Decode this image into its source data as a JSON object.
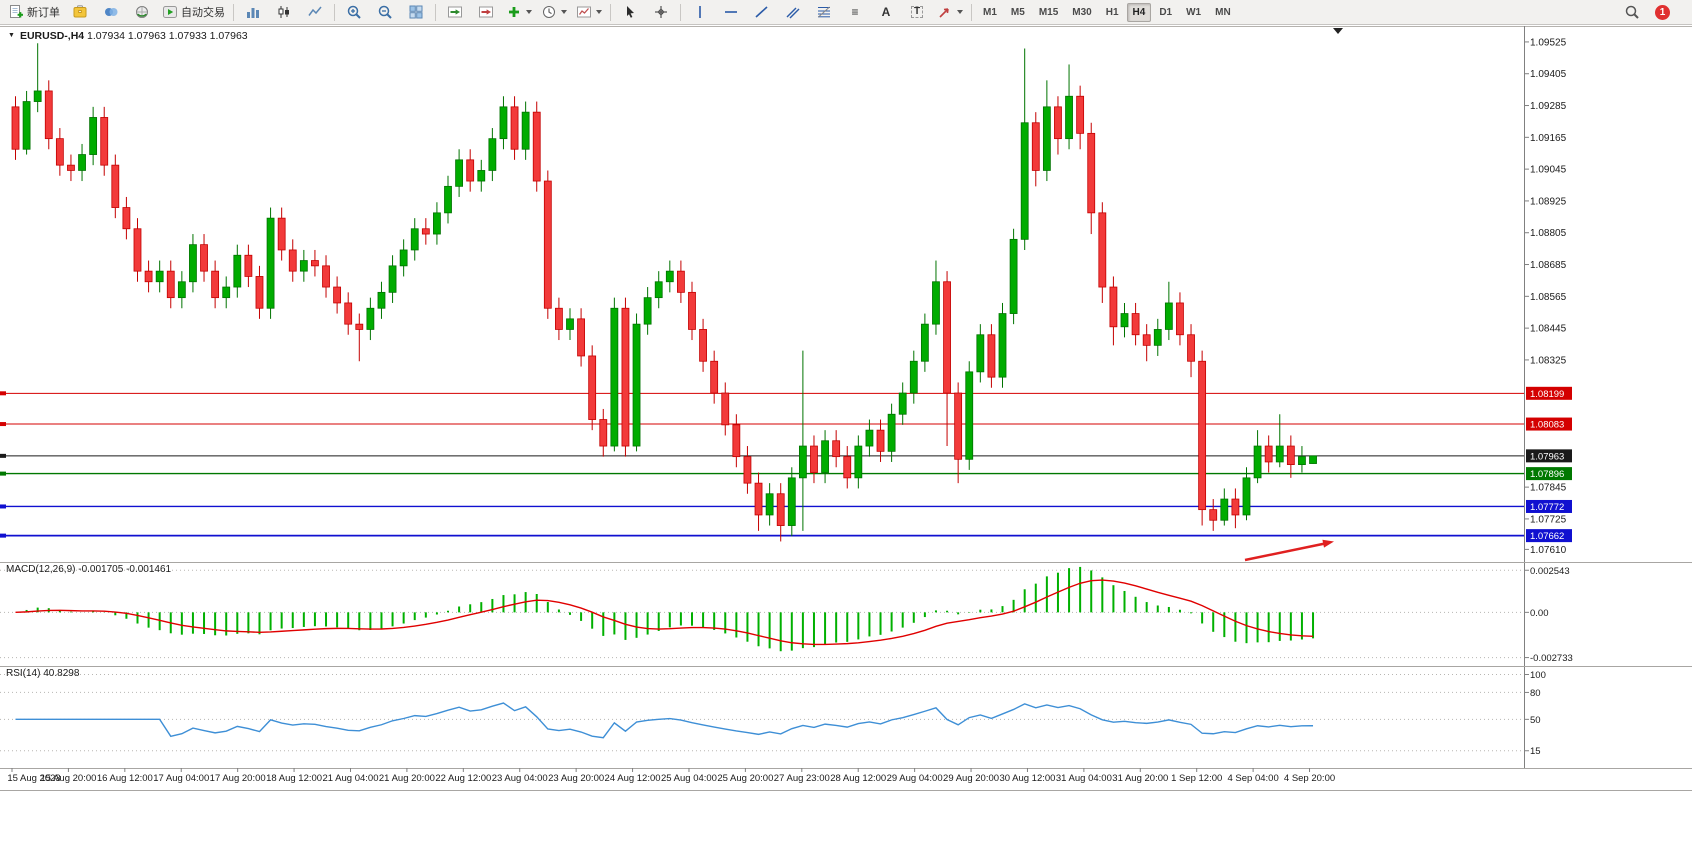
{
  "toolbar": {
    "new_order": "新订单",
    "autotrading": "自动交易",
    "timeframes": [
      "M1",
      "M5",
      "M15",
      "M30",
      "H1",
      "H4",
      "D1",
      "W1",
      "MN"
    ],
    "active_timeframe": "H4",
    "notification_count": "1"
  },
  "chart": {
    "symbol_label": "EURUSD-,H4",
    "ohlc_text": "1.07934 1.07963 1.07933 1.07963"
  },
  "chart_data": {
    "type": "candlestick",
    "symbol": "EURUSD-",
    "timeframe": "H4",
    "title": "EURUSD-,H4 1.07934 1.07963 1.07933 1.07963",
    "ylim": [
      1.0757,
      1.0957
    ],
    "y_ticks": [
      1.09525,
      1.09405,
      1.09285,
      1.09165,
      1.09045,
      1.08925,
      1.08805,
      1.08685,
      1.08565,
      1.08445,
      1.08325,
      1.07845,
      1.07725,
      1.0761
    ],
    "price_lines": [
      {
        "price": 1.08199,
        "label": "1.08199",
        "color": "#d40000",
        "width": 1
      },
      {
        "price": 1.08083,
        "label": "1.08083",
        "color": "#d40000",
        "width": 1
      },
      {
        "price": 1.07963,
        "label": "1.07963",
        "color": "#1a1a1a",
        "width": 1,
        "role": "current-bid"
      },
      {
        "price": 1.07896,
        "label": "1.07896",
        "color": "#007800",
        "width": 1.4
      },
      {
        "price": 1.07772,
        "label": "1.07772",
        "color": "#1010d0",
        "width": 1.4
      },
      {
        "price": 1.07662,
        "label": "1.07662",
        "color": "#1010d0",
        "width": 1.8
      }
    ],
    "x_labels": [
      "15 Aug 2023",
      "15 Aug 20:00",
      "16 Aug 12:00",
      "17 Aug 04:00",
      "17 Aug 20:00",
      "18 Aug 12:00",
      "21 Aug 04:00",
      "21 Aug 20:00",
      "22 Aug 12:00",
      "23 Aug 04:00",
      "23 Aug 20:00",
      "24 Aug 12:00",
      "25 Aug 04:00",
      "25 Aug 20:00",
      "27 Aug 23:00",
      "28 Aug 12:00",
      "29 Aug 04:00",
      "29 Aug 20:00",
      "30 Aug 12:00",
      "31 Aug 04:00",
      "31 Aug 20:00",
      "1 Sep 12:00",
      "4 Sep 04:00",
      "4 Sep 20:00"
    ],
    "candles": [
      [
        1.0928,
        1.0932,
        1.0908,
        1.0912
      ],
      [
        1.0912,
        1.0934,
        1.091,
        1.093
      ],
      [
        1.093,
        1.0952,
        1.0926,
        1.0934
      ],
      [
        1.0934,
        1.0938,
        1.0912,
        1.0916
      ],
      [
        1.0916,
        1.092,
        1.0902,
        1.0906
      ],
      [
        1.0906,
        1.091,
        1.09,
        1.0904
      ],
      [
        1.0904,
        1.0914,
        1.09,
        1.091
      ],
      [
        1.091,
        1.0928,
        1.0906,
        1.0924
      ],
      [
        1.0924,
        1.0928,
        1.0902,
        1.0906
      ],
      [
        1.0906,
        1.091,
        1.0886,
        1.089
      ],
      [
        1.089,
        1.0894,
        1.0878,
        1.0882
      ],
      [
        1.0882,
        1.0886,
        1.0862,
        1.0866
      ],
      [
        1.0866,
        1.087,
        1.0858,
        1.0862
      ],
      [
        1.0862,
        1.087,
        1.0858,
        1.0866
      ],
      [
        1.0866,
        1.087,
        1.0852,
        1.0856
      ],
      [
        1.0856,
        1.0866,
        1.0852,
        1.0862
      ],
      [
        1.0862,
        1.088,
        1.0858,
        1.0876
      ],
      [
        1.0876,
        1.088,
        1.0862,
        1.0866
      ],
      [
        1.0866,
        1.087,
        1.0852,
        1.0856
      ],
      [
        1.0856,
        1.0864,
        1.0852,
        1.086
      ],
      [
        1.086,
        1.0876,
        1.0856,
        1.0872
      ],
      [
        1.0872,
        1.0876,
        1.086,
        1.0864
      ],
      [
        1.0864,
        1.0868,
        1.0848,
        1.0852
      ],
      [
        1.0852,
        1.089,
        1.0848,
        1.0886
      ],
      [
        1.0886,
        1.089,
        1.087,
        1.0874
      ],
      [
        1.0874,
        1.0878,
        1.0862,
        1.0866
      ],
      [
        1.0866,
        1.0874,
        1.0862,
        1.087
      ],
      [
        1.087,
        1.0874,
        1.0864,
        1.0868
      ],
      [
        1.0868,
        1.0872,
        1.0856,
        1.086
      ],
      [
        1.086,
        1.0864,
        1.085,
        1.0854
      ],
      [
        1.0854,
        1.0858,
        1.0842,
        1.0846
      ],
      [
        1.0846,
        1.085,
        1.0832,
        1.0844
      ],
      [
        1.0844,
        1.0856,
        1.084,
        1.0852
      ],
      [
        1.0852,
        1.0862,
        1.0848,
        1.0858
      ],
      [
        1.0858,
        1.0872,
        1.0854,
        1.0868
      ],
      [
        1.0868,
        1.0878,
        1.0864,
        1.0874
      ],
      [
        1.0874,
        1.0886,
        1.087,
        1.0882
      ],
      [
        1.0882,
        1.0886,
        1.0876,
        1.088
      ],
      [
        1.088,
        1.0892,
        1.0876,
        1.0888
      ],
      [
        1.0888,
        1.0902,
        1.0884,
        1.0898
      ],
      [
        1.0898,
        1.0912,
        1.0894,
        1.0908
      ],
      [
        1.0908,
        1.0912,
        1.0896,
        1.09
      ],
      [
        1.09,
        1.0908,
        1.0896,
        1.0904
      ],
      [
        1.0904,
        1.092,
        1.09,
        1.0916
      ],
      [
        1.0916,
        1.0932,
        1.0912,
        1.0928
      ],
      [
        1.0928,
        1.0932,
        1.0908,
        1.0912
      ],
      [
        1.0912,
        1.093,
        1.0908,
        1.0926
      ],
      [
        1.0926,
        1.093,
        1.0896,
        1.09
      ],
      [
        1.09,
        1.0904,
        1.0848,
        1.0852
      ],
      [
        1.0852,
        1.0856,
        1.084,
        1.0844
      ],
      [
        1.0844,
        1.0852,
        1.084,
        1.0848
      ],
      [
        1.0848,
        1.0852,
        1.083,
        1.0834
      ],
      [
        1.0834,
        1.0838,
        1.0806,
        1.081
      ],
      [
        1.081,
        1.0814,
        1.0796,
        1.08
      ],
      [
        1.08,
        1.0856,
        1.0798,
        1.0852
      ],
      [
        1.0852,
        1.0856,
        1.0796,
        1.08
      ],
      [
        1.08,
        1.085,
        1.0798,
        1.0846
      ],
      [
        1.0846,
        1.086,
        1.0842,
        1.0856
      ],
      [
        1.0856,
        1.0866,
        1.0852,
        1.0862
      ],
      [
        1.0862,
        1.087,
        1.0858,
        1.0866
      ],
      [
        1.0866,
        1.087,
        1.0854,
        1.0858
      ],
      [
        1.0858,
        1.0862,
        1.084,
        1.0844
      ],
      [
        1.0844,
        1.0848,
        1.0828,
        1.0832
      ],
      [
        1.0832,
        1.0836,
        1.0816,
        1.082
      ],
      [
        1.082,
        1.0824,
        1.0804,
        1.0808
      ],
      [
        1.0808,
        1.0812,
        1.0792,
        1.0796
      ],
      [
        1.0796,
        1.08,
        1.0782,
        1.0786
      ],
      [
        1.0786,
        1.079,
        1.0768,
        1.0774
      ],
      [
        1.0774,
        1.0786,
        1.077,
        1.0782
      ],
      [
        1.0782,
        1.0786,
        1.0764,
        1.077
      ],
      [
        1.077,
        1.0792,
        1.0766,
        1.0788
      ],
      [
        1.0788,
        1.0836,
        1.0768,
        1.08
      ],
      [
        1.08,
        1.0804,
        1.0786,
        1.079
      ],
      [
        1.079,
        1.0806,
        1.0786,
        1.0802
      ],
      [
        1.0802,
        1.0806,
        1.0792,
        1.0796
      ],
      [
        1.0796,
        1.08,
        1.0784,
        1.0788
      ],
      [
        1.0788,
        1.0804,
        1.0784,
        1.08
      ],
      [
        1.08,
        1.081,
        1.0796,
        1.0806
      ],
      [
        1.0806,
        1.081,
        1.0794,
        1.0798
      ],
      [
        1.0798,
        1.0816,
        1.0794,
        1.0812
      ],
      [
        1.0812,
        1.0824,
        1.0808,
        1.082
      ],
      [
        1.082,
        1.0836,
        1.0816,
        1.0832
      ],
      [
        1.0832,
        1.085,
        1.0828,
        1.0846
      ],
      [
        1.0846,
        1.087,
        1.0842,
        1.0862
      ],
      [
        1.0862,
        1.0866,
        1.08,
        1.082
      ],
      [
        1.082,
        1.0824,
        1.0786,
        1.0795
      ],
      [
        1.0795,
        1.0832,
        1.0791,
        1.0828
      ],
      [
        1.0828,
        1.0846,
        1.0824,
        1.0842
      ],
      [
        1.0842,
        1.0846,
        1.0822,
        1.0826
      ],
      [
        1.0826,
        1.0854,
        1.0822,
        1.085
      ],
      [
        1.085,
        1.0882,
        1.0846,
        1.0878
      ],
      [
        1.0878,
        1.095,
        1.0874,
        1.0922
      ],
      [
        1.0922,
        1.0926,
        1.0898,
        1.0904
      ],
      [
        1.0904,
        1.0938,
        1.09,
        1.0928
      ],
      [
        1.0928,
        1.0932,
        1.091,
        1.0916
      ],
      [
        1.0916,
        1.0944,
        1.0912,
        1.0932
      ],
      [
        1.0932,
        1.0936,
        1.0912,
        1.0918
      ],
      [
        1.0918,
        1.0922,
        1.088,
        1.0888
      ],
      [
        1.0888,
        1.0892,
        1.0854,
        1.086
      ],
      [
        1.086,
        1.0864,
        1.0838,
        1.0845
      ],
      [
        1.0845,
        1.0854,
        1.0841,
        1.085
      ],
      [
        1.085,
        1.0854,
        1.0838,
        1.0842
      ],
      [
        1.0842,
        1.0846,
        1.0832,
        1.0838
      ],
      [
        1.0838,
        1.0848,
        1.0834,
        1.0844
      ],
      [
        1.0844,
        1.0862,
        1.084,
        1.0854
      ],
      [
        1.0854,
        1.0858,
        1.0838,
        1.0842
      ],
      [
        1.0842,
        1.0846,
        1.0826,
        1.0832
      ],
      [
        1.0832,
        1.0836,
        1.077,
        1.0776
      ],
      [
        1.0776,
        1.078,
        1.0768,
        1.0772
      ],
      [
        1.0772,
        1.0784,
        1.077,
        1.078
      ],
      [
        1.078,
        1.0784,
        1.0769,
        1.0774
      ],
      [
        1.0774,
        1.0792,
        1.0772,
        1.0788
      ],
      [
        1.0788,
        1.0806,
        1.0786,
        1.08
      ],
      [
        1.08,
        1.0804,
        1.079,
        1.0794
      ],
      [
        1.0794,
        1.0812,
        1.0792,
        1.08
      ],
      [
        1.08,
        1.0804,
        1.0788,
        1.0793
      ],
      [
        1.0793,
        1.08,
        1.079,
        1.0796
      ],
      [
        1.07934,
        1.07963,
        1.07933,
        1.07963
      ]
    ],
    "macd": {
      "label": "MACD(12,26,9)",
      "values_text": "-0.001705 -0.001461",
      "params": [
        12,
        26,
        9
      ],
      "y_ticks": [
        {
          "v": 0.002543,
          "label": "0.002543"
        },
        {
          "v": 0,
          "label": "0.00"
        },
        {
          "v": -0.002733,
          "label": "-0.002733"
        }
      ]
    },
    "rsi": {
      "label": "RSI(14)",
      "value_text": "40.8298",
      "period": 14,
      "y_ticks": [
        {
          "v": 100,
          "label": "100"
        },
        {
          "v": 80,
          "label": "80"
        },
        {
          "v": 50,
          "label": "50"
        },
        {
          "v": 15,
          "label": "15"
        }
      ]
    },
    "colors": {
      "up_fill": "#00ac00",
      "up_stroke": "#007300",
      "down_fill": "#f23a3a",
      "down_stroke": "#c40000",
      "macd_hist": "#00b000",
      "macd_signal": "#e00000",
      "rsi_line": "#3e8fd6"
    },
    "annotation": {
      "type": "arrow",
      "color": "#e02020",
      "points_to": "1.07662"
    }
  }
}
